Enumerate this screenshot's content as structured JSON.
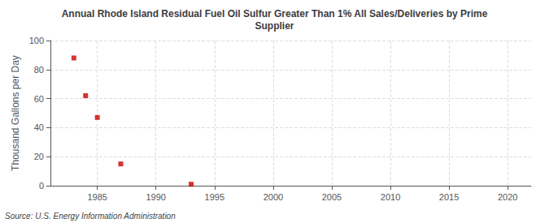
{
  "chart_data": {
    "type": "scatter",
    "title": "Annual Rhode Island Residual Fuel Oil Sulfur Greater Than 1% All Sales/Deliveries by Prime\nSupplier",
    "ylabel": "Thousand Gallons per Day",
    "annotation": "Source: U.S. Energy Information Administration",
    "x": [
      1983,
      1984,
      1985,
      1987,
      1993
    ],
    "values": [
      88,
      62,
      47,
      15,
      1
    ],
    "color": "#cc0000",
    "marker": "square",
    "xlim": [
      1981,
      2022
    ],
    "xticks": [
      1985,
      1990,
      1995,
      2000,
      2005,
      2010,
      2015,
      2020
    ],
    "ylim": [
      0,
      100
    ],
    "yticks": [
      0,
      20,
      40,
      60,
      80,
      100
    ],
    "grid": true
  }
}
